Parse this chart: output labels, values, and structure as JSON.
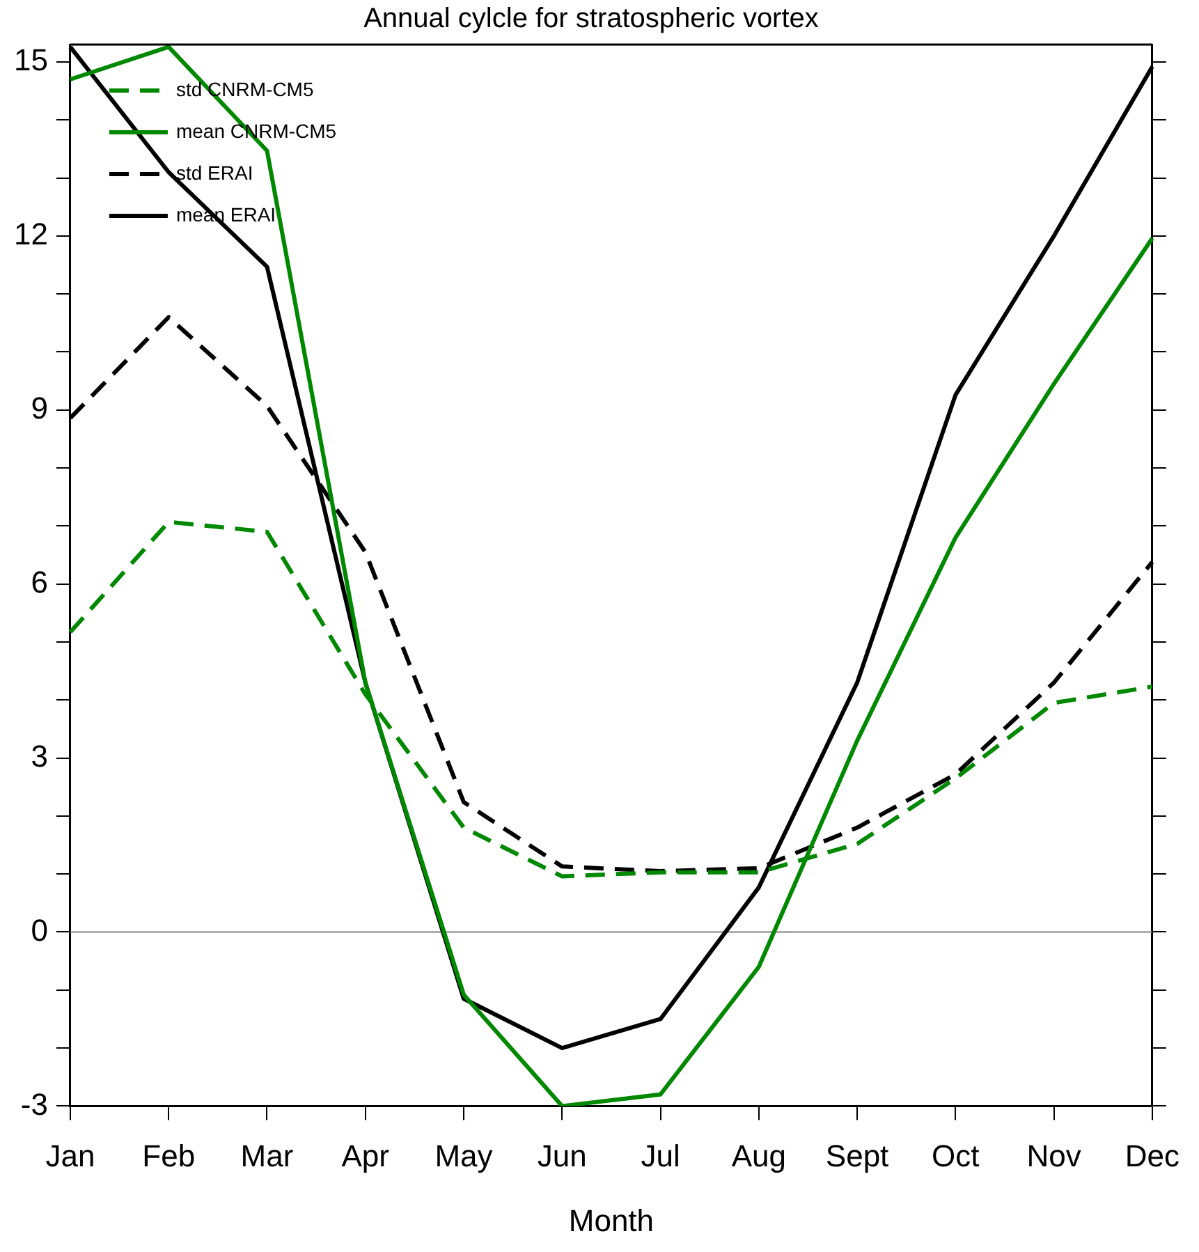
{
  "chart_data": {
    "type": "line",
    "title": "Annual cylcle for stratospheric vortex",
    "xlabel": "Month",
    "categories": [
      "Jan",
      "Feb",
      "Mar",
      "Apr",
      "May",
      "Jun",
      "Jul",
      "Aug",
      "Sept",
      "Oct",
      "Nov",
      "Dec"
    ],
    "series": [
      {
        "name": "std CNRM-CM5",
        "color": "#008800",
        "line_style": "dashed",
        "values": [
          5.17,
          7.07,
          6.9,
          4.1,
          1.8,
          0.96,
          1.03,
          1.03,
          1.52,
          2.65,
          3.95,
          4.23
        ]
      },
      {
        "name": "mean CNRM-CM5",
        "color": "#008800",
        "line_style": "solid",
        "values": [
          14.7,
          15.26,
          13.47,
          4.3,
          -1.08,
          -3.0,
          -2.8,
          -0.6,
          3.3,
          6.8,
          9.45,
          11.96
        ]
      },
      {
        "name": "std ERAI",
        "color": "#000000",
        "line_style": "dashed",
        "values": [
          8.86,
          10.6,
          9.07,
          6.55,
          2.24,
          1.13,
          1.05,
          1.1,
          1.8,
          2.72,
          4.3,
          6.38
        ]
      },
      {
        "name": "mean ERAI",
        "color": "#000000",
        "line_style": "solid",
        "values": [
          15.26,
          13.1,
          11.47,
          4.3,
          -1.15,
          -2.0,
          -1.5,
          0.77,
          4.3,
          9.26,
          12.0,
          14.92
        ]
      }
    ],
    "ylim": [
      -3,
      15.3
    ],
    "yticks": [
      -3,
      {
        "value": -2,
        "label": null
      },
      {
        "value": -1,
        "label": null
      },
      0,
      {
        "value": 1,
        "label": null
      },
      {
        "value": 2,
        "label": null
      },
      3,
      {
        "value": 4,
        "label": null
      },
      {
        "value": 5,
        "label": null
      },
      6,
      {
        "value": 7,
        "label": null
      },
      {
        "value": 8,
        "label": null
      },
      9,
      {
        "value": 10,
        "label": null
      },
      {
        "value": 11,
        "label": null
      },
      12,
      {
        "value": 13,
        "label": null
      },
      {
        "value": 14,
        "label": null
      },
      15
    ],
    "ref_lines": [
      {
        "axis": "y",
        "value": 0,
        "color": "#808080"
      }
    ],
    "grid": false,
    "legend": "top left",
    "marker": "none"
  }
}
